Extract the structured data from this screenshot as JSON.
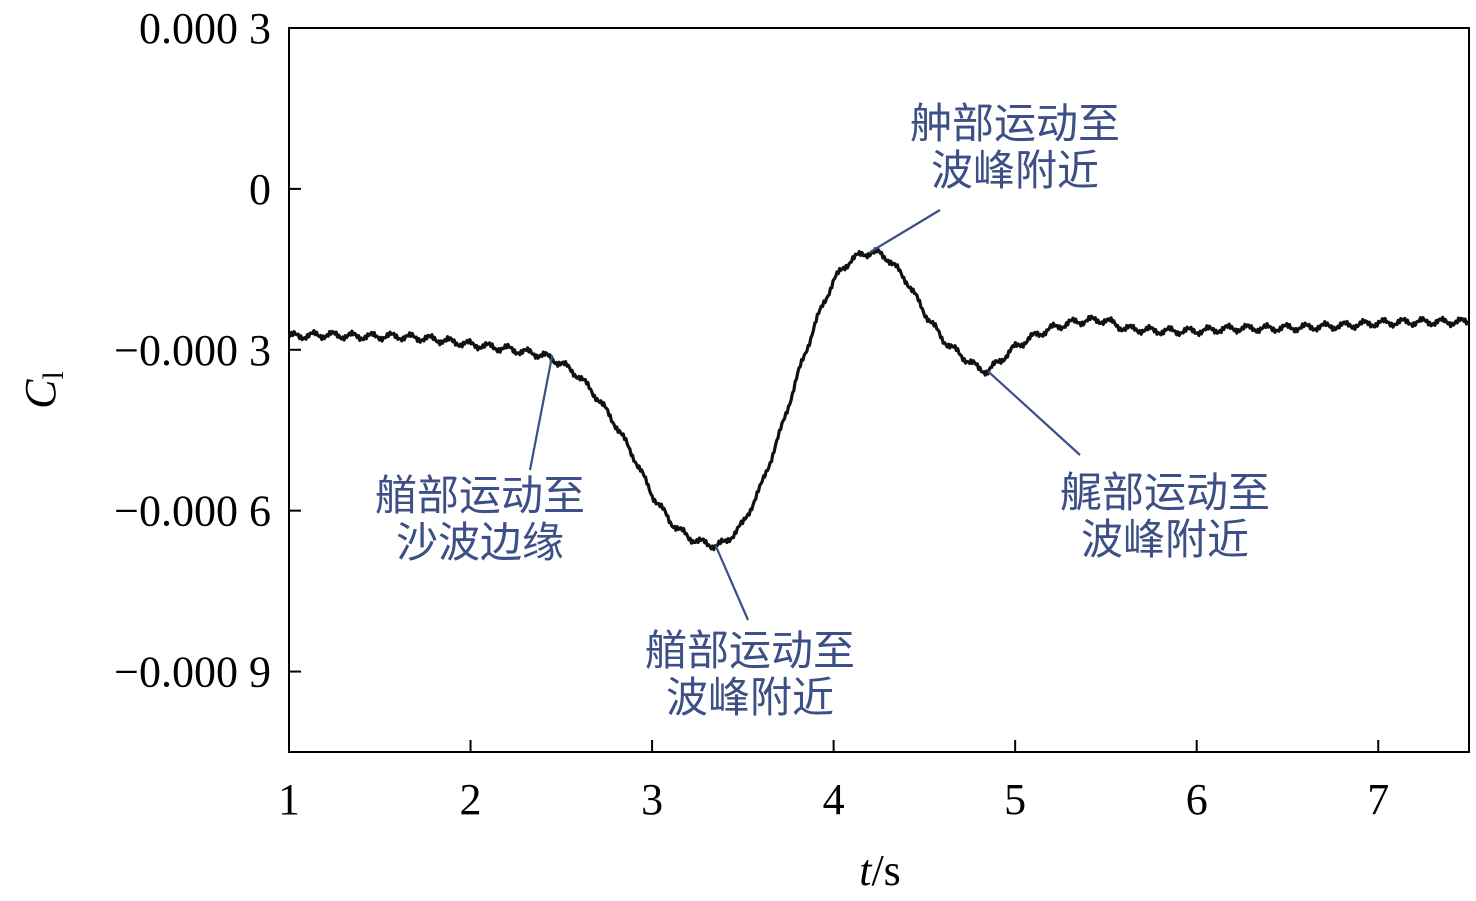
{
  "chart_data": {
    "type": "line",
    "title": "",
    "xlabel": "t/s",
    "xlabel_parts": {
      "var": "t",
      "unit": "/s"
    },
    "ylabel": "C_l",
    "ylabel_parts": {
      "main": "C",
      "sub": "l"
    },
    "xlim": [
      1,
      7.5
    ],
    "ylim": [
      -0.00105,
      0.0003
    ],
    "x_ticks": [
      {
        "value": 1,
        "label": "1"
      },
      {
        "value": 2,
        "label": "2"
      },
      {
        "value": 3,
        "label": "3"
      },
      {
        "value": 4,
        "label": "4"
      },
      {
        "value": 5,
        "label": "5"
      },
      {
        "value": 6,
        "label": "6"
      },
      {
        "value": 7,
        "label": "7"
      }
    ],
    "y_ticks": [
      {
        "value": 0.0003,
        "label": "0.000 3"
      },
      {
        "value": 0,
        "label": "0"
      },
      {
        "value": -0.0003,
        "label": "−0.000 3"
      },
      {
        "value": -0.0006,
        "label": "−0.000 6"
      },
      {
        "value": -0.0009,
        "label": "−0.000 9"
      }
    ],
    "grid": false,
    "line_color": "#111111",
    "series": [
      {
        "x": [
          1.0,
          1.2,
          1.4,
          1.6,
          1.8,
          2.0,
          2.2,
          2.4,
          2.5,
          2.6,
          2.7,
          2.8,
          2.9,
          3.0,
          3.1,
          3.2,
          3.3,
          3.35,
          3.4,
          3.5,
          3.6,
          3.7,
          3.8,
          3.9,
          4.0,
          4.1,
          4.2,
          4.25,
          4.3,
          4.4,
          4.5,
          4.6,
          4.7,
          4.8,
          4.85,
          4.9,
          5.0,
          5.1,
          5.2,
          5.3,
          5.4,
          5.5,
          5.6,
          5.8,
          6.0,
          6.2,
          6.4,
          6.6,
          6.8,
          7.0,
          7.2,
          7.5
        ],
        "y": [
          -0.000275,
          -0.000272,
          -0.000275,
          -0.000275,
          -0.00028,
          -0.00029,
          -0.000298,
          -0.00031,
          -0.000325,
          -0.00035,
          -0.00039,
          -0.00044,
          -0.0005,
          -0.00057,
          -0.00062,
          -0.00065,
          -0.000662,
          -0.000665,
          -0.00066,
          -0.000625,
          -0.000555,
          -0.00046,
          -0.00035,
          -0.00025,
          -0.00017,
          -0.00013,
          -0.000118,
          -0.00012,
          -0.00013,
          -0.00017,
          -0.00023,
          -0.00028,
          -0.00031,
          -0.000335,
          -0.00034,
          -0.000325,
          -0.000295,
          -0.000275,
          -0.00026,
          -0.00025,
          -0.000245,
          -0.000245,
          -0.00026,
          -0.000265,
          -0.000265,
          -0.00026,
          -0.00026,
          -0.000258,
          -0.000255,
          -0.00025,
          -0.000248,
          -0.000248
        ]
      }
    ],
    "annotations": [
      {
        "lines": [
          "艏部运动至",
          "沙波边缘"
        ],
        "point": [
          2.45,
          -0.00031
        ]
      },
      {
        "lines": [
          "艏部运动至",
          "波峰附近"
        ],
        "point": [
          3.35,
          -0.000665
        ]
      },
      {
        "lines": [
          "舯部运动至",
          "波峰附近"
        ],
        "point": [
          4.2,
          -0.000118
        ]
      },
      {
        "lines": [
          "艉部运动至",
          "波峰附近"
        ],
        "point": [
          4.85,
          -0.00034
        ]
      }
    ]
  }
}
